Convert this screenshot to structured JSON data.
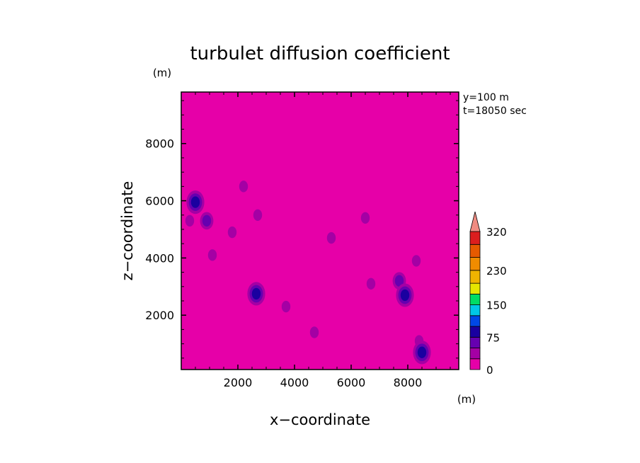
{
  "chart_data": {
    "type": "heatmap",
    "title": "turbulet diffusion coefficient",
    "xlabel": "x−coordinate",
    "ylabel": "z−coordinate",
    "x_unit": "(m)",
    "y_unit": "(m)",
    "annotations": [
      "y=100 m",
      "t=18050 sec"
    ],
    "xlim": [
      0,
      9800
    ],
    "ylim": [
      100,
      9800
    ],
    "x_ticks": [
      2000,
      4000,
      6000,
      8000
    ],
    "y_ticks": [
      2000,
      4000,
      6000,
      8000
    ],
    "x_tick_labels": [
      "2000",
      "4000",
      "6000",
      "8000"
    ],
    "y_tick_labels": [
      "2000",
      "4000",
      "6000",
      "8000"
    ],
    "grid": false,
    "background_value": 0,
    "background_color": "#e600a8",
    "colorbar": {
      "levels": [
        0,
        25,
        50,
        75,
        100,
        125,
        150,
        175,
        200,
        230,
        260,
        290,
        320
      ],
      "labels": [
        "0",
        "75",
        "150",
        "230",
        "320"
      ],
      "label_values": [
        0,
        75,
        150,
        230,
        320
      ],
      "colors": [
        "#e600a8",
        "#a400a4",
        "#6600b0",
        "#1a00a0",
        "#0048e6",
        "#00c8e6",
        "#00dc64",
        "#e6e600",
        "#f0b400",
        "#f08c00",
        "#e65a00",
        "#dc1e1e"
      ],
      "extend_color": "#f08c82"
    },
    "features": [
      {
        "x": 500,
        "z": 5950,
        "level": 3
      },
      {
        "x": 300,
        "z": 5300,
        "level": 1
      },
      {
        "x": 900,
        "z": 5300,
        "level": 2
      },
      {
        "x": 1100,
        "z": 4100,
        "level": 1
      },
      {
        "x": 1800,
        "z": 4900,
        "level": 1
      },
      {
        "x": 2200,
        "z": 6500,
        "level": 1
      },
      {
        "x": 2700,
        "z": 5500,
        "level": 1
      },
      {
        "x": 2650,
        "z": 2750,
        "level": 3
      },
      {
        "x": 3700,
        "z": 2300,
        "level": 1
      },
      {
        "x": 4700,
        "z": 1400,
        "level": 1
      },
      {
        "x": 5300,
        "z": 4700,
        "level": 1
      },
      {
        "x": 6500,
        "z": 5400,
        "level": 1
      },
      {
        "x": 6700,
        "z": 3100,
        "level": 1
      },
      {
        "x": 7700,
        "z": 3200,
        "level": 2
      },
      {
        "x": 7900,
        "z": 2700,
        "level": 3
      },
      {
        "x": 8300,
        "z": 3900,
        "level": 1
      },
      {
        "x": 8400,
        "z": 1100,
        "level": 1
      },
      {
        "x": 8500,
        "z": 700,
        "level": 3
      }
    ]
  }
}
